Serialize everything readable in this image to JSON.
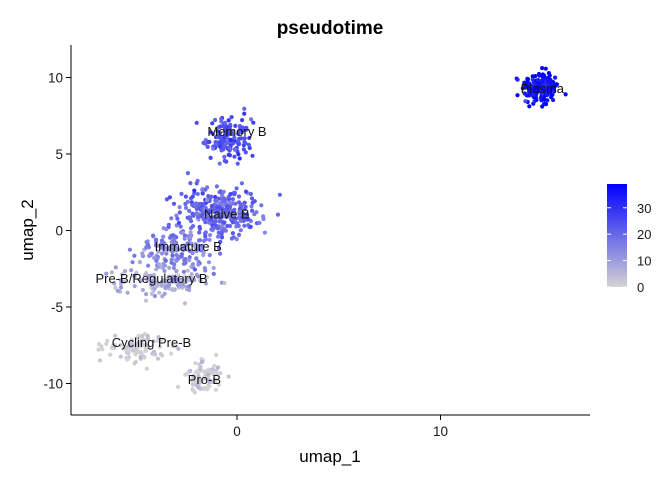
{
  "chart_data": {
    "type": "scatter",
    "title": "pseudotime",
    "xlabel": "umap_1",
    "ylabel": "umap_2",
    "xlim": [
      -8.2,
      17.2
    ],
    "ylim": [
      -12.0,
      12.0
    ],
    "x_ticks": [
      0,
      10
    ],
    "y_ticks": [
      10,
      5,
      0,
      -5,
      -10
    ],
    "grid": false,
    "legend": {
      "placement": "right",
      "title": "",
      "range": [
        0,
        39
      ],
      "ticks": [
        30,
        20,
        10,
        0
      ],
      "color_low": "#d3d3d3",
      "color_high": "#0000ff"
    },
    "clusters": [
      {
        "label": "Plasma",
        "cx": 14.9,
        "cy": 9.3,
        "sx": 0.45,
        "sy": 0.55,
        "n": 170,
        "pt": 37
      },
      {
        "label": "Memory B",
        "cx": -0.4,
        "cy": 6.0,
        "sx": 0.55,
        "sy": 0.7,
        "n": 150,
        "pt": 24
      },
      {
        "label": "Naive B",
        "cx": -0.9,
        "cy": 1.2,
        "sx": 1.0,
        "sy": 0.85,
        "n": 320,
        "pt": 20
      },
      {
        "label": "Immature B",
        "cx": -3.0,
        "cy": -1.3,
        "sx": 1.0,
        "sy": 0.7,
        "n": 150,
        "pt": 15
      },
      {
        "label": "Pre-B/Regulatory B",
        "cx": -3.5,
        "cy": -3.3,
        "sx": 1.2,
        "sy": 0.55,
        "n": 130,
        "pt": 8
      },
      {
        "label": "Cycling Pre-B",
        "cx": -5.0,
        "cy": -7.7,
        "sx": 0.8,
        "sy": 0.45,
        "n": 90,
        "pt": 1
      },
      {
        "label": "Pro-B",
        "cx": -1.7,
        "cy": -9.5,
        "sx": 0.45,
        "sy": 0.55,
        "n": 80,
        "pt": 1
      }
    ],
    "label_positions": [
      {
        "label": "Plasma",
        "x": 15.0,
        "y": 9.3
      },
      {
        "label": "Memory B",
        "x": 0.0,
        "y": 6.5
      },
      {
        "label": "Naive B",
        "x": -0.5,
        "y": 1.1
      },
      {
        "label": "Immature B",
        "x": -2.4,
        "y": -1.0
      },
      {
        "label": "Pre-B/Regulatory B",
        "x": -4.2,
        "y": -3.1
      },
      {
        "label": "Cycling Pre-B",
        "x": -4.2,
        "y": -7.3
      },
      {
        "label": "Pro-B",
        "x": -1.6,
        "y": -9.7
      }
    ]
  }
}
